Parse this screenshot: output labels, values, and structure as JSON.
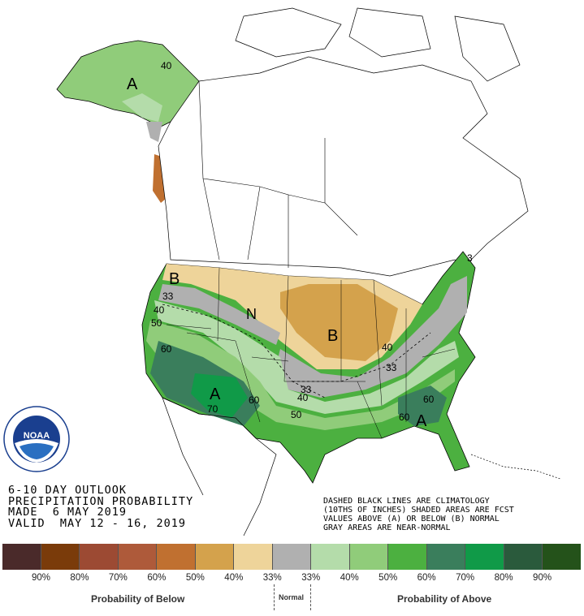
{
  "title": {
    "line1": "6-10 DAY OUTLOOK",
    "line2": "PRECIPITATION PROBABILITY",
    "made": "MADE  6 MAY 2019",
    "valid": "VALID  MAY 12 - 16, 2019"
  },
  "notes": {
    "line1": "DASHED BLACK LINES ARE CLIMATOLOGY",
    "line2": "(10THS OF INCHES) SHADED AREAS ARE FCST",
    "line3": "VALUES ABOVE (A) OR BELOW (B) NORMAL",
    "line4": "GRAY AREAS ARE NEAR-NORMAL"
  },
  "logo": {
    "name": "NOAA",
    "ring_text": "NATIONAL OCEANIC AND ATMOSPHERIC ADMINISTRATION · U.S. DEPARTMENT OF COMMERCE"
  },
  "map_labels": {
    "alaska_A": "A",
    "alaska_40": "40",
    "west_B": "B",
    "c33a": "33",
    "c40a": "40",
    "c50a": "50",
    "c60a": "60",
    "north_N": "N",
    "mid_B": "B",
    "c40b": "40",
    "c33b": "33",
    "sw_A": "A",
    "c70": "70",
    "c60b": "60",
    "c33c": "33",
    "c40c": "40",
    "c50b": "50",
    "c60c": "60",
    "c60d": "60",
    "se_A": "A",
    "ne_33": "3"
  },
  "legend": {
    "colors": [
      "#4a2a2a",
      "#7a3b0a",
      "#9c4a33",
      "#ae5a3a",
      "#c07030",
      "#d4a24c",
      "#eed49a",
      "#b0b0b0",
      "#b4dcaa",
      "#90cc7a",
      "#4cb040",
      "#3a7e5c",
      "#109a48",
      "#2a5a3c",
      "#24521a"
    ],
    "labels": [
      "90%",
      "80%",
      "70%",
      "60%",
      "50%",
      "40%",
      "33%",
      "33%",
      "40%",
      "50%",
      "60%",
      "70%",
      "80%",
      "90%"
    ],
    "below_caption": "Probability of Below",
    "normal_caption": "Normal",
    "above_caption": "Probability of Above"
  }
}
